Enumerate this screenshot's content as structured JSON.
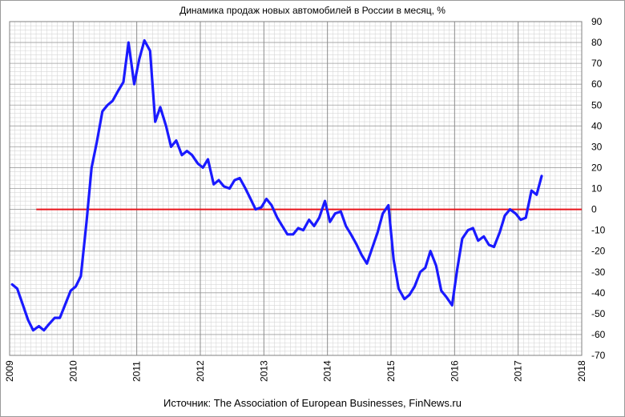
{
  "chart_data": {
    "type": "line",
    "title": "Динамика продаж новых автомобилей в России в месяц, %",
    "source": "Источник: The Association of European Businesses, FinNews.ru",
    "xlabel": "",
    "ylabel": "",
    "xlim": [
      2009,
      2018
    ],
    "ylim": [
      -70,
      90
    ],
    "x_ticks": [
      "2009",
      "2010",
      "2011",
      "2012",
      "2013",
      "2014",
      "2015",
      "2016",
      "2017",
      "2018"
    ],
    "y_ticks": [
      "90",
      "80",
      "70",
      "60",
      "50",
      "40",
      "30",
      "20",
      "10",
      "0",
      "-10",
      "-20",
      "-30",
      "-40",
      "-50",
      "-60",
      "-70"
    ],
    "grid": true,
    "reference_line": {
      "y": 0,
      "x_start": 2009.42,
      "x_end": 2018.0,
      "color": "#e8141b"
    },
    "series": [
      {
        "color": "#1a1aff",
        "points": [
          [
            2009.04,
            -36
          ],
          [
            2009.12,
            -38
          ],
          [
            2009.21,
            -46
          ],
          [
            2009.29,
            -53
          ],
          [
            2009.37,
            -58
          ],
          [
            2009.46,
            -56
          ],
          [
            2009.54,
            -58
          ],
          [
            2009.62,
            -55
          ],
          [
            2009.71,
            -52
          ],
          [
            2009.79,
            -52
          ],
          [
            2009.87,
            -46
          ],
          [
            2009.96,
            -39
          ],
          [
            2010.04,
            -37
          ],
          [
            2010.12,
            -32
          ],
          [
            2010.21,
            -6
          ],
          [
            2010.29,
            20
          ],
          [
            2010.37,
            32
          ],
          [
            2010.46,
            47
          ],
          [
            2010.54,
            50
          ],
          [
            2010.62,
            52
          ],
          [
            2010.71,
            57
          ],
          [
            2010.79,
            61
          ],
          [
            2010.87,
            80
          ],
          [
            2010.96,
            60
          ],
          [
            2011.04,
            72
          ],
          [
            2011.12,
            81
          ],
          [
            2011.21,
            76
          ],
          [
            2011.29,
            42
          ],
          [
            2011.37,
            49
          ],
          [
            2011.46,
            40
          ],
          [
            2011.54,
            30
          ],
          [
            2011.62,
            33
          ],
          [
            2011.71,
            26
          ],
          [
            2011.79,
            28
          ],
          [
            2011.87,
            26
          ],
          [
            2011.96,
            22
          ],
          [
            2012.04,
            20
          ],
          [
            2012.12,
            24
          ],
          [
            2012.21,
            12
          ],
          [
            2012.29,
            14
          ],
          [
            2012.37,
            11
          ],
          [
            2012.46,
            10
          ],
          [
            2012.54,
            14
          ],
          [
            2012.62,
            15
          ],
          [
            2012.71,
            10
          ],
          [
            2012.79,
            5
          ],
          [
            2012.87,
            0
          ],
          [
            2012.96,
            1
          ],
          [
            2013.04,
            5
          ],
          [
            2013.12,
            2
          ],
          [
            2013.21,
            -4
          ],
          [
            2013.29,
            -8
          ],
          [
            2013.37,
            -12
          ],
          [
            2013.46,
            -12
          ],
          [
            2013.54,
            -9
          ],
          [
            2013.62,
            -10
          ],
          [
            2013.71,
            -5
          ],
          [
            2013.79,
            -8
          ],
          [
            2013.87,
            -4
          ],
          [
            2013.96,
            4
          ],
          [
            2014.04,
            -6
          ],
          [
            2014.12,
            -2
          ],
          [
            2014.21,
            -1
          ],
          [
            2014.29,
            -8
          ],
          [
            2014.37,
            -12
          ],
          [
            2014.46,
            -17
          ],
          [
            2014.54,
            -22
          ],
          [
            2014.62,
            -26
          ],
          [
            2014.71,
            -18
          ],
          [
            2014.79,
            -11
          ],
          [
            2014.87,
            -2
          ],
          [
            2014.96,
            2
          ],
          [
            2015.04,
            -24
          ],
          [
            2015.12,
            -38
          ],
          [
            2015.21,
            -43
          ],
          [
            2015.29,
            -41
          ],
          [
            2015.37,
            -37
          ],
          [
            2015.46,
            -30
          ],
          [
            2015.54,
            -28
          ],
          [
            2015.62,
            -20
          ],
          [
            2015.71,
            -27
          ],
          [
            2015.79,
            -39
          ],
          [
            2015.87,
            -42
          ],
          [
            2015.96,
            -46
          ],
          [
            2016.04,
            -29
          ],
          [
            2016.12,
            -14
          ],
          [
            2016.21,
            -10
          ],
          [
            2016.29,
            -9
          ],
          [
            2016.37,
            -15
          ],
          [
            2016.46,
            -13
          ],
          [
            2016.54,
            -17
          ],
          [
            2016.62,
            -18
          ],
          [
            2016.71,
            -11
          ],
          [
            2016.79,
            -3
          ],
          [
            2016.87,
            0
          ],
          [
            2016.96,
            -2
          ],
          [
            2017.04,
            -5
          ],
          [
            2017.12,
            -4
          ],
          [
            2017.21,
            9
          ],
          [
            2017.29,
            7
          ],
          [
            2017.37,
            16
          ]
        ]
      }
    ]
  }
}
